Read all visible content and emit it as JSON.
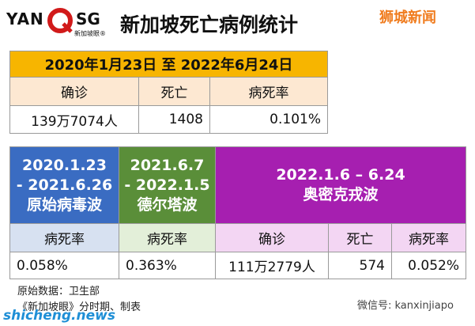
{
  "header": {
    "logo_left": "YAN",
    "logo_right": "SG",
    "logo_sub": "新加坡眼®",
    "title": "新加坡死亡病例统计",
    "watermark": "狮城新闻"
  },
  "summary": {
    "period": "2020年1月23日 至 2022年6月24日",
    "headers": [
      "确诊",
      "死亡",
      "病死率"
    ],
    "row": [
      "139万7074人",
      "1408",
      "0.101%"
    ]
  },
  "waves": [
    {
      "period_start": "2020.1.23",
      "period_end": "- 2021.6.26",
      "name": "原始病毒波",
      "headers": [
        "病死率"
      ],
      "row": [
        "0.058%"
      ]
    },
    {
      "period_start": "2021.6.7",
      "period_end": "- 2022.1.5",
      "name": "德尔塔波",
      "headers": [
        "病死率"
      ],
      "row": [
        "0.363%"
      ]
    },
    {
      "period": "2022.1.6 – 6.24",
      "name": "奥密克戎波",
      "headers": [
        "确诊",
        "死亡",
        "病死率"
      ],
      "row": [
        "111万2779人",
        "574",
        "0.052%"
      ]
    }
  ],
  "footer": {
    "source": "原始数据：卫生部",
    "credit": "《新加坡眼》分时期、制表",
    "wechat": "微信号: kanxinjiapo",
    "site": "shicheng.news"
  }
}
